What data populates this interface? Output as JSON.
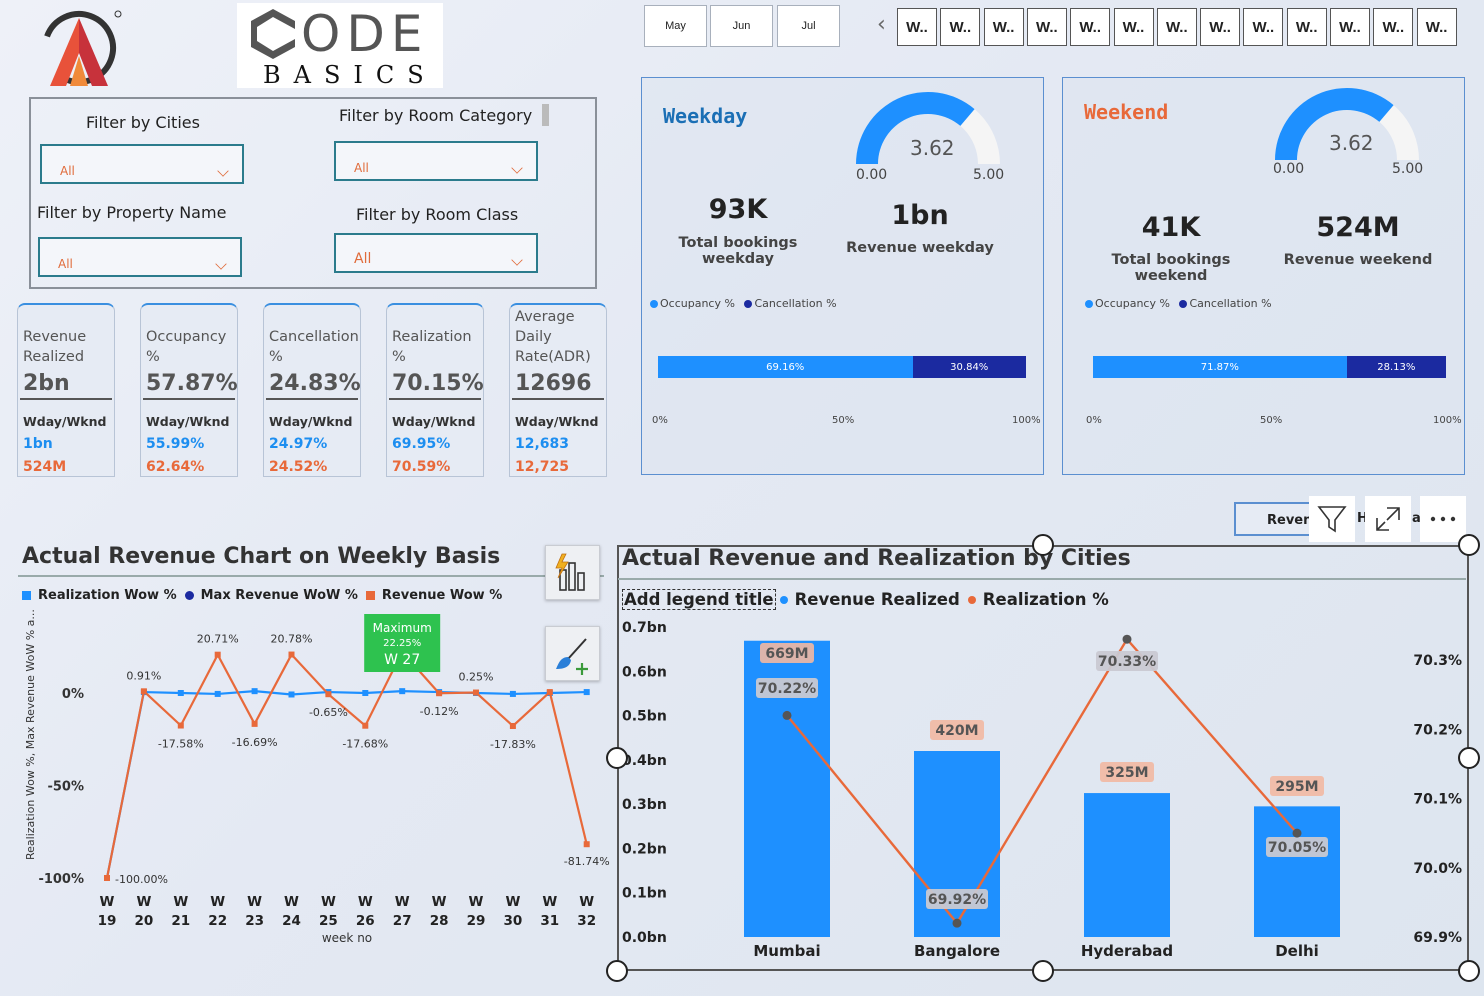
{
  "brand": {
    "code_text": "ODE",
    "basics_text": "BASICS"
  },
  "months": [
    "May",
    "Jun",
    "Jul"
  ],
  "weeks": [
    "W..",
    "W..",
    "W..",
    "W..",
    "W..",
    "W..",
    "W..",
    "W..",
    "W..",
    "W..",
    "W..",
    "W..",
    "W.."
  ],
  "filters": {
    "cities_label": "Filter by Cities",
    "cities_value": "All",
    "room_category_label": "Filter by Room Category",
    "room_category_value": "All",
    "property_label": "Filter by Property Name",
    "property_value": "All",
    "room_class_label": "Filter by Room Class",
    "room_class_value": "All"
  },
  "kpis": [
    {
      "title_lines": [
        "Revenue",
        "Realized"
      ],
      "value": "2bn",
      "sub": "Wday/Wknd",
      "wday": "1bn",
      "wknd": "524M"
    },
    {
      "title_lines": [
        "Occupancy",
        "%"
      ],
      "value": "57.87%",
      "sub": "Wday/Wknd",
      "wday": "55.99%",
      "wknd": "62.64%"
    },
    {
      "title_lines": [
        "Cancellation",
        "%"
      ],
      "value": "24.83%",
      "sub": "Wday/Wknd",
      "wday": "24.97%",
      "wknd": "24.52%"
    },
    {
      "title_lines": [
        "Realization",
        "%"
      ],
      "value": "70.15%",
      "sub": "Wday/Wknd",
      "wday": "69.95%",
      "wknd": "70.59%"
    },
    {
      "title_lines": [
        "Average",
        "Daily",
        "Rate(ADR)"
      ],
      "value": "12696",
      "sub": "Wday/Wknd",
      "wday": "12,683",
      "wknd": "12,725"
    }
  ],
  "weekday": {
    "title": "Weekday",
    "gauge_value": "3.62",
    "gauge_fraction": 0.724,
    "gauge_min": "0.00",
    "gauge_max": "5.00",
    "bookings": "93K",
    "bookings_label": "Total bookings weekday",
    "revenue": "1bn",
    "revenue_label": "Revenue weekday",
    "legend_occ": "Occupancy %",
    "legend_can": "Cancellation %",
    "occ_pct": 69.16,
    "occ_label": "69.16%",
    "can_label": "30.84%",
    "ticks": [
      "0%",
      "50%",
      "100%"
    ]
  },
  "weekend": {
    "title": "Weekend",
    "gauge_value": "3.62",
    "gauge_fraction": 0.724,
    "gauge_min": "0.00",
    "gauge_max": "5.00",
    "bookings": "41K",
    "bookings_label": "Total bookings weekend",
    "revenue": "524M",
    "revenue_label": "Revenue weekend",
    "legend_occ": "Occupancy %",
    "legend_can": "Cancellation %",
    "occ_pct": 71.87,
    "occ_label": "71.87%",
    "can_label": "28.13%",
    "ticks": [
      "0%",
      "50%",
      "100%"
    ]
  },
  "colors": {
    "blue": "#1e90ff",
    "dark_blue": "#1b2aa0",
    "orange": "#e8693a",
    "green": "#2ec24f"
  },
  "weekly_chart": {
    "title": "Actual Revenue Chart on Weekly Basis",
    "legend": [
      "Realization Wow %",
      "Max Revenue WoW %",
      "Revenue Wow %"
    ],
    "ylabel": "Realization Wow %, Max Revenue WoW % a...",
    "xlabel": "week no",
    "y_ticks": [
      "0%",
      "-50%",
      "-100%"
    ],
    "tooltip": {
      "title": "Maximum",
      "value": "22.25%",
      "week": "W 27"
    }
  },
  "chart_data": [
    {
      "type": "line",
      "title": "Actual Revenue Chart on Weekly Basis",
      "xlabel": "week no",
      "ylabel": "Realization Wow %, Max Revenue WoW % a...",
      "x": [
        "W 19",
        "W 20",
        "W 21",
        "W 22",
        "W 23",
        "W 24",
        "W 25",
        "W 26",
        "W 27",
        "W 28",
        "W 29",
        "W 30",
        "W 31",
        "W 32"
      ],
      "ylim": [
        -100,
        30
      ],
      "series": [
        {
          "name": "Revenue Wow %",
          "values": [
            -100,
            0.91,
            -17.58,
            20.71,
            -16.69,
            20.78,
            -0.65,
            -17.68,
            22.25,
            -0.12,
            0.25,
            -17.83,
            0.5,
            -81.74
          ],
          "labels": [
            "-100.00%",
            "0.91%",
            "-17.58%",
            "20.71%",
            "-16.69%",
            "20.78%",
            "-0.65%",
            "-17.68%",
            "",
            "-0.12%",
            "0.25%",
            "-17.83%",
            "0.",
            "-81.74%"
          ]
        },
        {
          "name": "Realization Wow %",
          "values": [
            -100,
            0.5,
            0,
            -0.5,
            1,
            -0.8,
            0.5,
            0,
            1,
            0.5,
            0,
            -0.5,
            0,
            0.5
          ]
        }
      ]
    },
    {
      "type": "bar",
      "title": "Actual Revenue and Realization by Cities",
      "legend_title": "Add legend title",
      "categories": [
        "Mumbai",
        "Bangalore",
        "Hyderabad",
        "Delhi"
      ],
      "series": [
        {
          "name": "Revenue Realized",
          "values": [
            669,
            420,
            325,
            295
          ],
          "unit": "M",
          "labels": [
            "669M",
            "420M",
            "325M",
            "295M"
          ]
        },
        {
          "name": "Realization %",
          "values": [
            70.22,
            69.92,
            70.33,
            70.05
          ],
          "labels": [
            "70.22%",
            "69.92%",
            "70.33%",
            "70.05%"
          ]
        }
      ],
      "y_left_ticks": [
        "0.7bn",
        "0.6bn",
        "0.5bn",
        "0.4bn",
        "0.3bn",
        "0.2bn",
        "0.1bn",
        "0.0bn"
      ],
      "ylim_left": [
        0,
        700
      ],
      "y_right_ticks": [
        "70.3%",
        "70.2%",
        "70.1%",
        "70.0%",
        "69.9%"
      ],
      "ylim_right": [
        69.9,
        70.3
      ]
    }
  ],
  "toolbar": {
    "revenue_partial": "Reven",
    "h_partial": "H",
    "as_partial": "as"
  }
}
